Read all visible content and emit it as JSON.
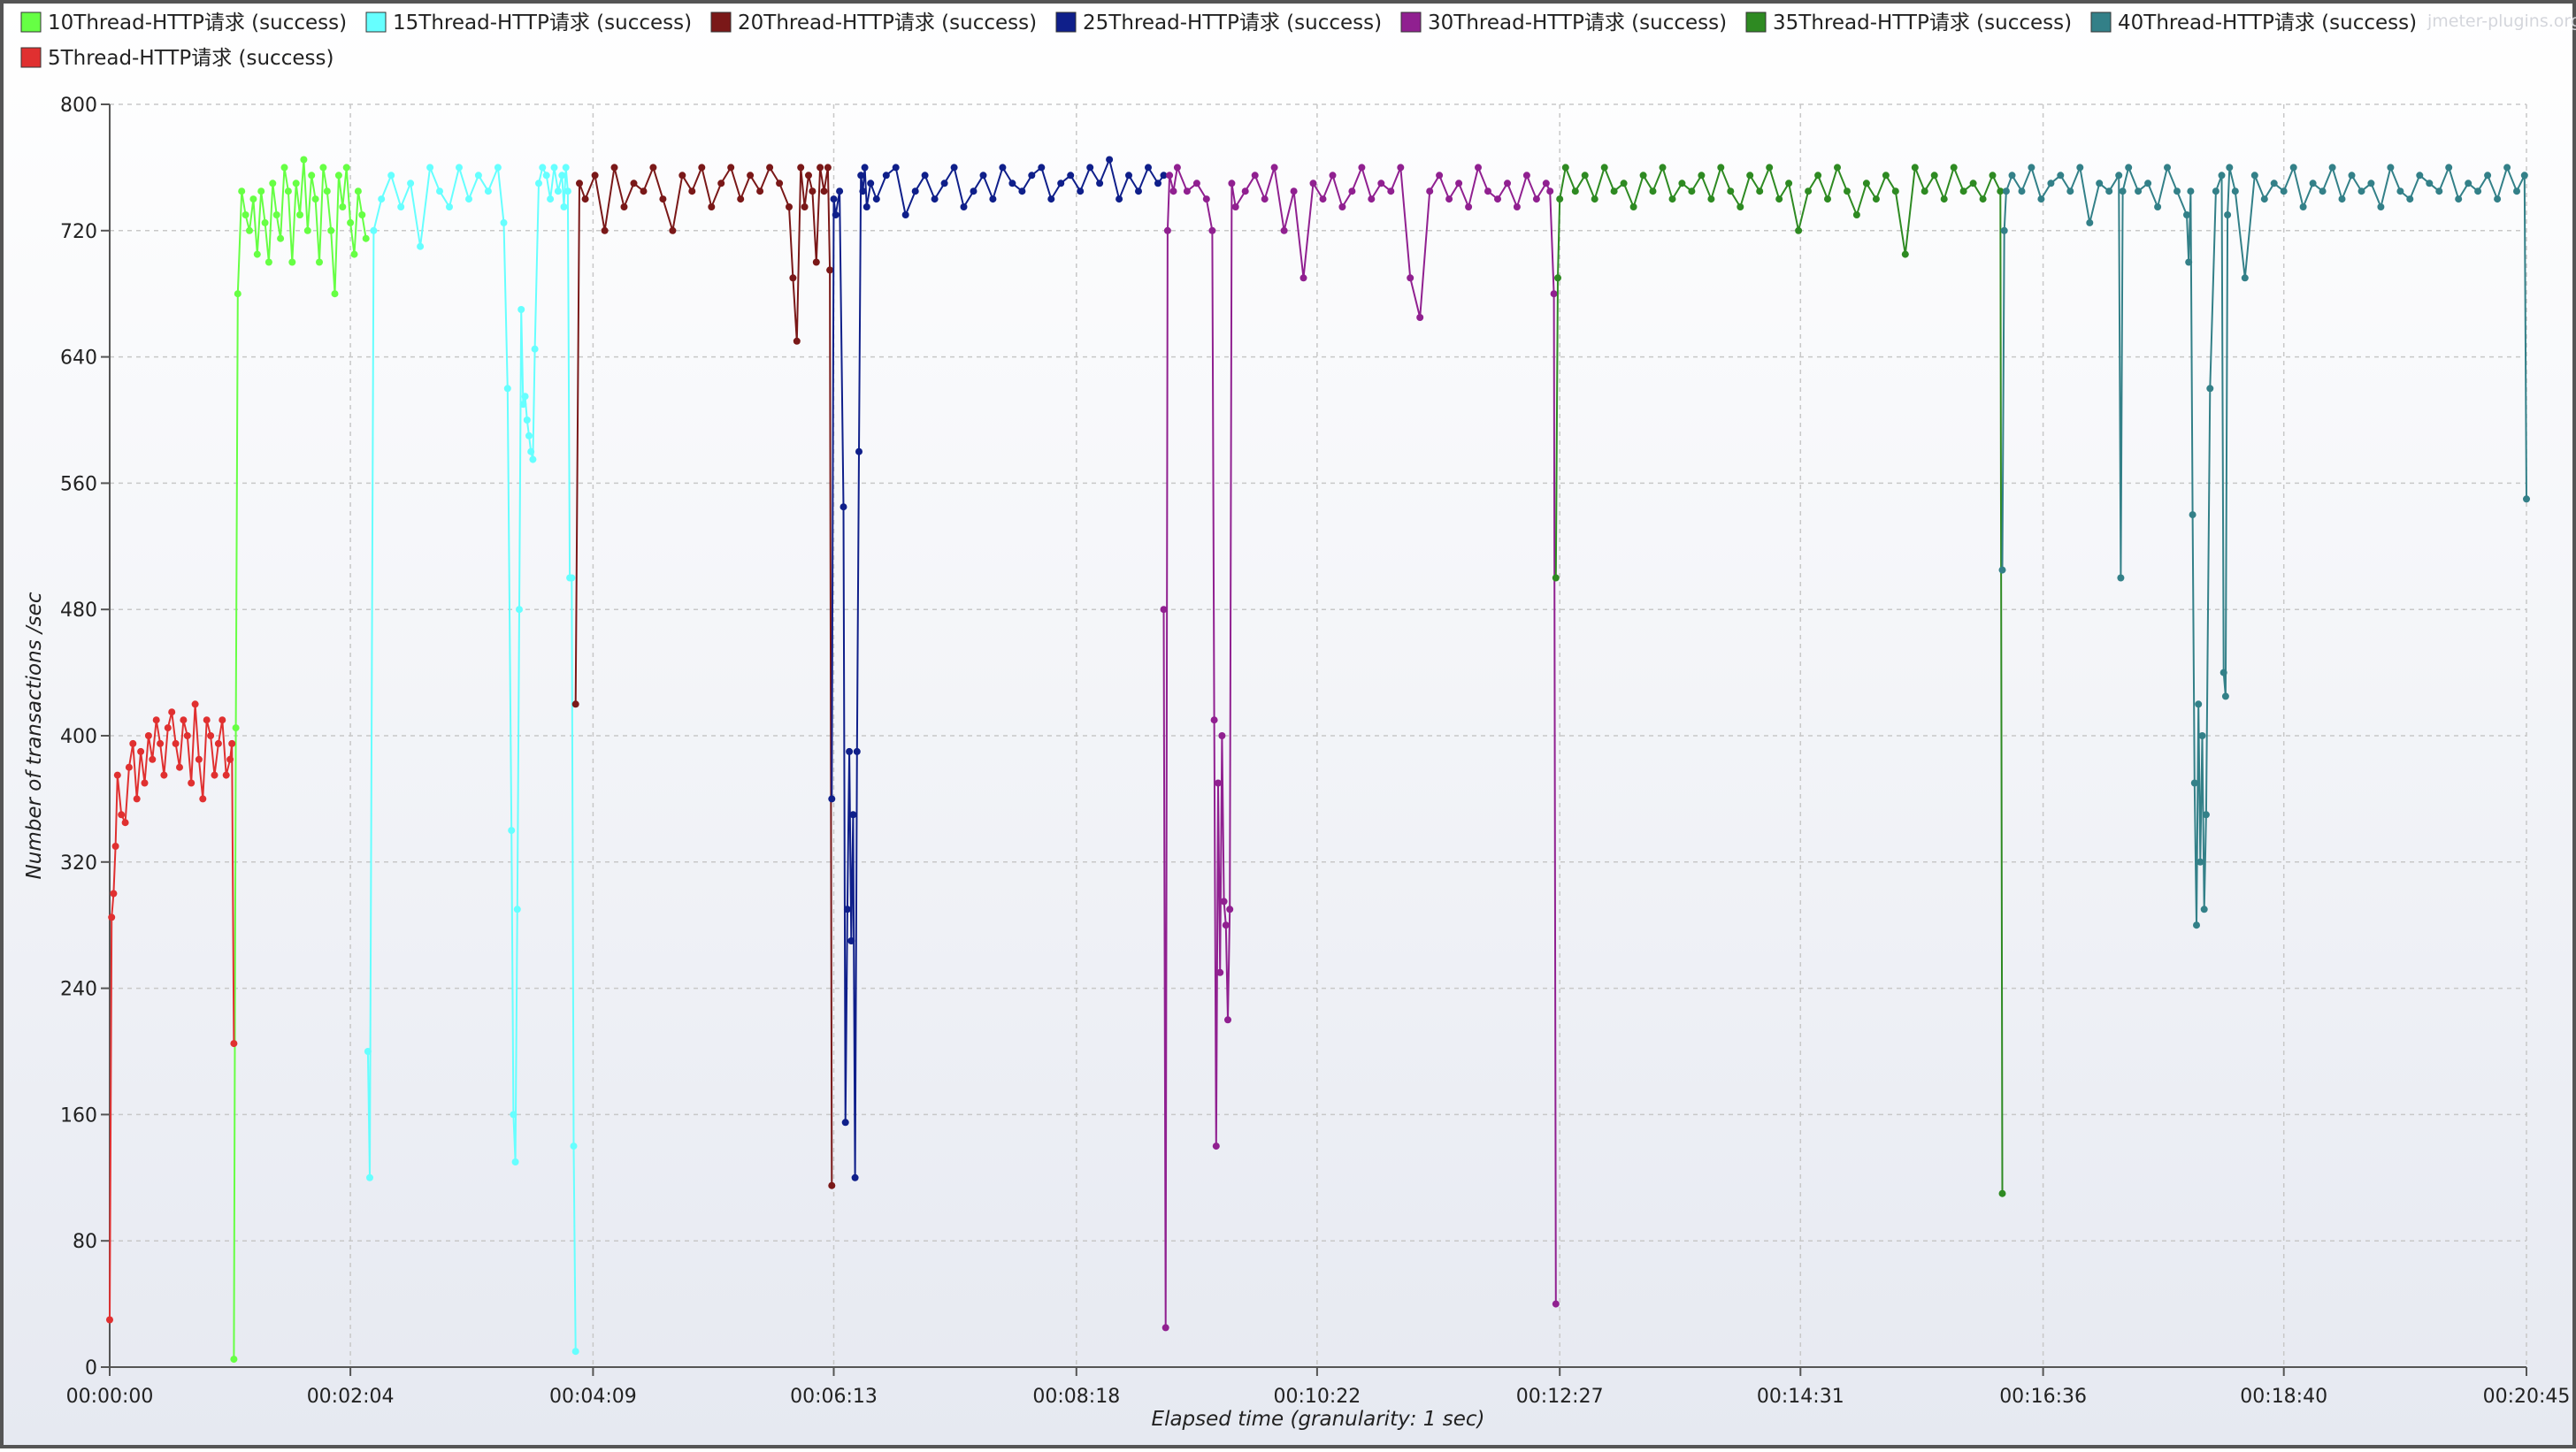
{
  "watermark": "jmeter-plugins.org",
  "chart_data": {
    "type": "line",
    "title": "",
    "xlabel": "Elapsed time (granularity: 1 sec)",
    "ylabel": "Number of transactions /sec",
    "xlim": [
      0,
      1245
    ],
    "ylim": [
      0,
      800
    ],
    "y_ticks": [
      0,
      80,
      160,
      240,
      320,
      400,
      480,
      560,
      640,
      720,
      800
    ],
    "x_ticks": [
      {
        "t": 0,
        "label": "00:00:00"
      },
      {
        "t": 124,
        "label": "00:02:04"
      },
      {
        "t": 249,
        "label": "00:04:09"
      },
      {
        "t": 373,
        "label": "00:06:13"
      },
      {
        "t": 498,
        "label": "00:08:18"
      },
      {
        "t": 622,
        "label": "00:10:22"
      },
      {
        "t": 747,
        "label": "00:12:27"
      },
      {
        "t": 871,
        "label": "00:14:31"
      },
      {
        "t": 996,
        "label": "00:16:36"
      },
      {
        "t": 1120,
        "label": "00:18:40"
      },
      {
        "t": 1245,
        "label": "00:20:45"
      }
    ],
    "grid": true,
    "legend_position": "top",
    "series": [
      {
        "name": "10Thread-HTTP请求 (success)",
        "color": "#66ff44",
        "start": 64,
        "end": 132,
        "x": [
          64,
          65,
          66,
          68,
          70,
          72,
          74,
          76,
          78,
          80,
          82,
          84,
          86,
          88,
          90,
          92,
          94,
          96,
          98,
          100,
          102,
          104,
          106,
          108,
          110,
          112,
          114,
          116,
          118,
          120,
          122,
          124,
          126,
          128,
          130,
          132
        ],
        "y": [
          5,
          405,
          680,
          745,
          730,
          720,
          740,
          705,
          745,
          725,
          700,
          750,
          730,
          715,
          760,
          745,
          700,
          750,
          730,
          765,
          720,
          755,
          740,
          700,
          760,
          745,
          720,
          680,
          755,
          735,
          760,
          725,
          705,
          745,
          730,
          715
        ]
      },
      {
        "name": "15Thread-HTTP请求 (success)",
        "color": "#66ffff",
        "start": 133,
        "end": 240,
        "x": [
          133,
          134,
          136,
          140,
          145,
          150,
          155,
          160,
          165,
          170,
          175,
          180,
          185,
          190,
          195,
          200,
          203,
          205,
          207,
          208,
          209,
          210,
          211,
          212,
          213,
          214,
          215,
          216,
          217,
          218,
          219,
          221,
          223,
          225,
          227,
          229,
          231,
          233,
          234,
          235,
          236,
          237,
          238,
          239,
          240
        ],
        "y": [
          200,
          120,
          720,
          740,
          755,
          735,
          750,
          710,
          760,
          745,
          735,
          760,
          740,
          755,
          745,
          760,
          725,
          620,
          340,
          160,
          130,
          290,
          480,
          670,
          610,
          615,
          600,
          590,
          580,
          575,
          645,
          750,
          760,
          755,
          740,
          760,
          745,
          755,
          735,
          760,
          745,
          500,
          500,
          140,
          10
        ]
      },
      {
        "name": "20Thread-HTTP请求 (success)",
        "color": "#7a1818",
        "start": 240,
        "end": 372,
        "x": [
          240,
          242,
          245,
          250,
          255,
          260,
          265,
          270,
          275,
          280,
          285,
          290,
          295,
          300,
          305,
          310,
          315,
          320,
          325,
          330,
          335,
          340,
          345,
          350,
          352,
          354,
          356,
          358,
          360,
          362,
          364,
          366,
          368,
          370,
          371,
          372
        ],
        "y": [
          420,
          750,
          740,
          755,
          720,
          760,
          735,
          750,
          745,
          760,
          740,
          720,
          755,
          745,
          760,
          735,
          750,
          760,
          740,
          755,
          745,
          760,
          750,
          735,
          690,
          650,
          760,
          735,
          755,
          745,
          700,
          760,
          745,
          760,
          695,
          115
        ]
      },
      {
        "name": "25Thread-HTTP请求 (success)",
        "color": "#0f1f8a",
        "start": 372,
        "end": 543,
        "x": [
          372,
          373,
          374,
          376,
          378,
          379,
          380,
          381,
          382,
          383,
          384,
          385,
          386,
          387,
          388,
          389,
          390,
          392,
          395,
          400,
          405,
          410,
          415,
          420,
          425,
          430,
          435,
          440,
          445,
          450,
          455,
          460,
          465,
          470,
          475,
          480,
          485,
          490,
          495,
          500,
          505,
          510,
          515,
          520,
          525,
          530,
          535,
          540,
          543
        ],
        "y": [
          360,
          740,
          730,
          745,
          545,
          155,
          290,
          390,
          270,
          350,
          120,
          390,
          580,
          755,
          745,
          760,
          735,
          750,
          740,
          755,
          760,
          730,
          745,
          755,
          740,
          750,
          760,
          735,
          745,
          755,
          740,
          760,
          750,
          745,
          755,
          760,
          740,
          750,
          755,
          745,
          760,
          750,
          765,
          740,
          755,
          745,
          760,
          750,
          755
        ]
      },
      {
        "name": "30Thread-HTTP请求 (success)",
        "color": "#902090",
        "start": 543,
        "end": 745,
        "x": [
          543,
          544,
          545,
          546,
          548,
          550,
          555,
          560,
          565,
          568,
          569,
          570,
          571,
          572,
          573,
          574,
          575,
          576,
          577,
          578,
          580,
          585,
          590,
          595,
          600,
          605,
          610,
          615,
          620,
          625,
          630,
          635,
          640,
          645,
          650,
          655,
          660,
          665,
          670,
          675,
          680,
          685,
          690,
          695,
          700,
          705,
          710,
          715,
          720,
          725,
          730,
          735,
          740,
          742,
          744,
          745
        ],
        "y": [
          480,
          25,
          720,
          755,
          745,
          760,
          745,
          750,
          740,
          720,
          410,
          140,
          370,
          250,
          400,
          295,
          280,
          220,
          290,
          750,
          735,
          745,
          755,
          740,
          760,
          720,
          745,
          690,
          750,
          740,
          755,
          735,
          745,
          760,
          740,
          750,
          745,
          760,
          690,
          665,
          745,
          755,
          740,
          750,
          735,
          760,
          745,
          740,
          750,
          735,
          755,
          740,
          750,
          745,
          680,
          40
        ]
      },
      {
        "name": "35Thread-HTTP请求 (success)",
        "color": "#2e8a22",
        "start": 745,
        "end": 975,
        "x": [
          745,
          746,
          747,
          750,
          755,
          760,
          765,
          770,
          775,
          780,
          785,
          790,
          795,
          800,
          805,
          810,
          815,
          820,
          825,
          830,
          835,
          840,
          845,
          850,
          855,
          860,
          865,
          870,
          875,
          880,
          885,
          890,
          895,
          900,
          905,
          910,
          915,
          920,
          925,
          930,
          935,
          940,
          945,
          950,
          955,
          960,
          965,
          970,
          974,
          975
        ],
        "y": [
          500,
          690,
          740,
          760,
          745,
          755,
          740,
          760,
          745,
          750,
          735,
          755,
          745,
          760,
          740,
          750,
          745,
          755,
          740,
          760,
          745,
          735,
          755,
          745,
          760,
          740,
          750,
          720,
          745,
          755,
          740,
          760,
          745,
          730,
          750,
          740,
          755,
          745,
          705,
          760,
          745,
          755,
          740,
          760,
          745,
          750,
          740,
          755,
          745,
          110
        ]
      },
      {
        "name": "40Thread-HTTP请求 (success)",
        "color": "#338088",
        "start": 975,
        "end": 1245,
        "x": [
          975,
          976,
          977,
          980,
          985,
          990,
          995,
          1000,
          1005,
          1010,
          1015,
          1020,
          1025,
          1030,
          1035,
          1036,
          1037,
          1040,
          1045,
          1050,
          1055,
          1060,
          1065,
          1070,
          1071,
          1072,
          1073,
          1074,
          1075,
          1076,
          1077,
          1078,
          1079,
          1080,
          1082,
          1085,
          1088,
          1089,
          1090,
          1091,
          1092,
          1095,
          1100,
          1105,
          1110,
          1115,
          1120,
          1125,
          1130,
          1135,
          1140,
          1145,
          1150,
          1155,
          1160,
          1165,
          1170,
          1175,
          1180,
          1185,
          1190,
          1195,
          1200,
          1205,
          1210,
          1215,
          1220,
          1225,
          1230,
          1235,
          1240,
          1244,
          1245
        ],
        "y": [
          505,
          720,
          745,
          755,
          745,
          760,
          740,
          750,
          755,
          745,
          760,
          725,
          750,
          745,
          755,
          500,
          745,
          760,
          745,
          750,
          735,
          760,
          745,
          730,
          700,
          745,
          540,
          370,
          280,
          420,
          320,
          400,
          290,
          350,
          620,
          745,
          755,
          440,
          425,
          730,
          760,
          745,
          690,
          755,
          740,
          750,
          745,
          760,
          735,
          750,
          745,
          760,
          740,
          755,
          745,
          750,
          735,
          760,
          745,
          740,
          755,
          750,
          745,
          760,
          740,
          750,
          745,
          755,
          740,
          760,
          745,
          755,
          550
        ]
      },
      {
        "name": "5Thread-HTTP请求 (success)",
        "color": "#e03030",
        "start": 0,
        "end": 64,
        "x": [
          0,
          1,
          2,
          3,
          4,
          6,
          8,
          10,
          12,
          14,
          16,
          18,
          20,
          22,
          24,
          26,
          28,
          30,
          32,
          34,
          36,
          38,
          40,
          42,
          44,
          46,
          48,
          50,
          52,
          54,
          56,
          58,
          60,
          62,
          63,
          64
        ],
        "y": [
          30,
          285,
          300,
          330,
          375,
          350,
          345,
          380,
          395,
          360,
          390,
          370,
          400,
          385,
          410,
          395,
          375,
          405,
          415,
          395,
          380,
          410,
          400,
          370,
          420,
          385,
          360,
          410,
          400,
          375,
          395,
          410,
          375,
          385,
          395,
          205
        ]
      }
    ]
  }
}
